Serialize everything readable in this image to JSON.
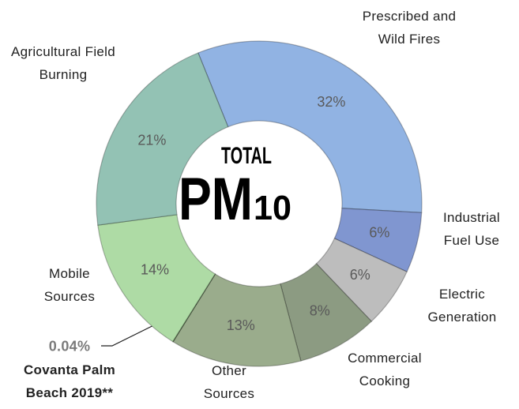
{
  "chart_data": {
    "type": "donut",
    "center_label": {
      "line1": "TOTAL",
      "main": "PM",
      "sub": "10"
    },
    "categories": [
      "Prescribed and Wild Fires",
      "Industrial Fuel Use",
      "Electric Generation",
      "Commercial Cooking",
      "Other Sources",
      "Covanta Palm Beach 2019**",
      "Mobile Sources",
      "Agricultural Field Burning"
    ],
    "values": [
      32,
      6,
      6,
      8,
      13,
      0.04,
      14,
      21
    ],
    "value_labels": [
      "32%",
      "6%",
      "6%",
      "8%",
      "13%",
      "0.04%",
      "14%",
      "21%"
    ],
    "colors": [
      "#91b3e3",
      "#8096d0",
      "#bdbdbd",
      "#8c9b82",
      "#9aac8c",
      "#4e8a3c",
      "#aedba5",
      "#93c2b4"
    ]
  }
}
